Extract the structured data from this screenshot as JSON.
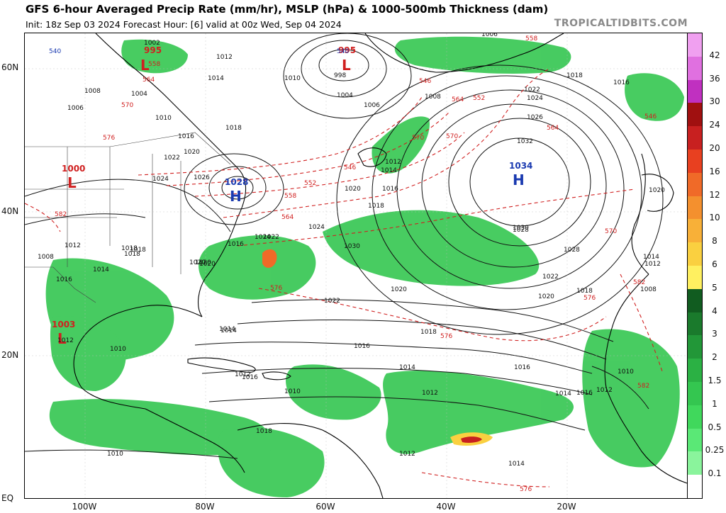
{
  "title": "GFS 6-hour Averaged Precip Rate (mm/hr), MSLP (hPa) & 1000-500mb Thickness (dam)",
  "subtitle": "Init: 18z Sep 03 2024   Forecast Hour: [6]   valid at 00z Wed, Sep 04 2024",
  "brand": "TROPICALTIDBITS.COM",
  "axes": {
    "lat_labels": [
      "60N",
      "40N",
      "20N",
      "EQ"
    ],
    "lon_labels": [
      "100W",
      "80W",
      "60W",
      "40W",
      "20W"
    ]
  },
  "colorbar": {
    "ticks": [
      "42",
      "36",
      "30",
      "24",
      "20",
      "16",
      "12",
      "10",
      "8",
      "6",
      "5",
      "4",
      "3",
      "2",
      "1.5",
      "1",
      "0.5",
      "0.25",
      "0.1"
    ],
    "colors": [
      "#f0a0f0",
      "#e070e0",
      "#c030c0",
      "#a01010",
      "#c82020",
      "#e84020",
      "#f06a28",
      "#f4902e",
      "#f8b038",
      "#fad040",
      "#fff060",
      "#115c20",
      "#1a7a2c",
      "#229738",
      "#2bb144",
      "#34c650",
      "#40d85c",
      "#5ae876",
      "#8af49c"
    ]
  },
  "pressure_centers": [
    {
      "type": "L",
      "value": "995",
      "color": "#d02020"
    },
    {
      "type": "L",
      "value": "1000",
      "color": "#d02020"
    },
    {
      "type": "H",
      "value": "1028",
      "color": "#1a3ab0"
    },
    {
      "type": "L",
      "value": "995",
      "color": "#d02020"
    },
    {
      "type": "H",
      "value": "1034",
      "color": "#1a3ab0"
    },
    {
      "type": "L",
      "value": "1003",
      "color": "#d02020"
    }
  ],
  "isobar_labels": [
    "1002",
    "1004",
    "1006",
    "1008",
    "1010",
    "1012",
    "1014",
    "1016",
    "1018",
    "1020",
    "1022",
    "1024",
    "1026",
    "1028",
    "1030",
    "1032",
    "1006",
    "1008",
    "1010",
    "1012",
    "1014",
    "1016",
    "1018",
    "1020",
    "1022",
    "1024",
    "1026",
    "1028",
    "1030",
    "1022",
    "1020",
    "1018",
    "1016",
    "1014",
    "1012",
    "1010",
    "1008",
    "1012",
    "1014",
    "1016",
    "1018",
    "1020",
    "1024",
    "1022",
    "1020",
    "1018",
    "1016",
    "1014",
    "1012",
    "1010",
    "1012",
    "1014",
    "1016",
    "1018",
    "1020",
    "1008",
    "1010",
    "1012",
    "1014",
    "1016",
    "1018",
    "1020",
    "1012",
    "1014",
    "1016",
    "1018",
    "1010",
    "1012",
    "1014",
    "1016",
    "1018",
    "1020",
    "1022",
    "1024",
    "998",
    "1004",
    "1006"
  ],
  "thickness_labels": [
    "540",
    "558",
    "564",
    "570",
    "576",
    "582",
    "546",
    "552",
    "558",
    "564",
    "570",
    "576",
    "546",
    "552",
    "564",
    "570",
    "576",
    "582",
    "540",
    "546",
    "558",
    "564",
    "570",
    "576",
    "582",
    "576"
  ]
}
